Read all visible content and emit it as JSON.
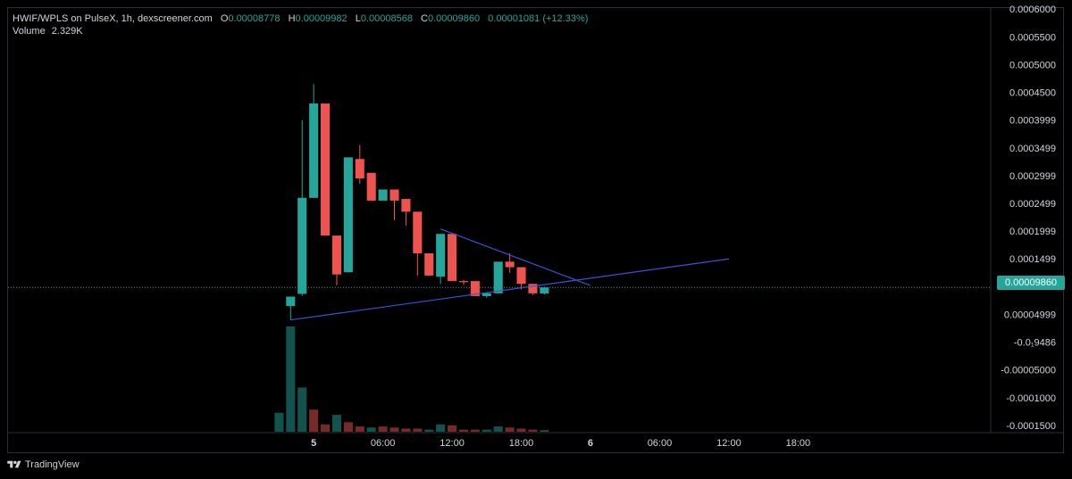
{
  "header": {
    "symbol": "HWIF/WPLS on PulseX, 1h, dexscreener.com",
    "o_label": "O",
    "o_value": "0.00008778",
    "h_label": "H",
    "h_value": "0.00009982",
    "l_label": "L",
    "l_value": "0.00008568",
    "c_label": "C",
    "c_value": "0.00009860",
    "change": "0.00001081 (+12.33%)",
    "volume_label": "Volume",
    "volume_value": "2.329K"
  },
  "footer": {
    "brand": "TradingView"
  },
  "colors": {
    "up": "#26a69a",
    "down": "#ef5350",
    "trendline": "#3f51d6",
    "grid": "#1e222d",
    "background": "#000000"
  },
  "chart_data": {
    "type": "candlestick",
    "interval": "1h",
    "y_tick_labels": [
      "0.0006000",
      "0.0005500",
      "0.0005000",
      "0.0004500",
      "0.0003999",
      "0.0003499",
      "0.0002999",
      "0.0002499",
      "0.0001999",
      "0.0001499",
      "0.00004999",
      "-0.0₁9486",
      "-0.00005000",
      "-0.0001000",
      "-0.0001500"
    ],
    "y_ticks": [
      0.0006,
      0.00055,
      0.0005,
      0.00045,
      0.0004,
      0.00035,
      0.0003,
      0.00025,
      0.0002,
      0.00015,
      5e-05,
      1e-10,
      -5e-05,
      -0.0001,
      -0.00015
    ],
    "ylim": [
      -0.000163,
      0.000602
    ],
    "x_tick_labels": [
      "5",
      "06:00",
      "12:00",
      "18:00",
      "6",
      "06:00",
      "12:00",
      "18:00"
    ],
    "x_ticks": [
      4,
      10,
      16,
      22,
      28,
      34,
      40,
      46
    ],
    "xlim": [
      -22.5,
      62.7
    ],
    "last_price": "0.00009860",
    "last_price_value": 9.86e-05,
    "candles": [
      {
        "x": 2,
        "open": 6.5e-05,
        "close": 8.2e-05,
        "high": 8.2e-05,
        "low": 4e-05
      },
      {
        "x": 3,
        "open": 8.7e-05,
        "close": 0.00026,
        "high": 0.0004,
        "low": 8.3e-05
      },
      {
        "x": 4,
        "open": 0.00026,
        "close": 0.00043,
        "high": 0.000465,
        "low": 0.00026
      },
      {
        "x": 5,
        "open": 0.00043,
        "close": 0.000192,
        "high": 0.00043,
        "low": 0.000192
      },
      {
        "x": 6,
        "open": 0.000192,
        "close": 0.000122,
        "high": 0.000192,
        "low": 0.000102
      },
      {
        "x": 7,
        "open": 0.000126,
        "close": 0.000333,
        "high": 0.000333,
        "low": 0.000126
      },
      {
        "x": 8,
        "open": 0.00033,
        "close": 0.000295,
        "high": 0.000355,
        "low": 0.000285
      },
      {
        "x": 9,
        "open": 0.000305,
        "close": 0.000255,
        "high": 0.000305,
        "low": 0.000255
      },
      {
        "x": 10,
        "open": 0.000255,
        "close": 0.000275,
        "high": 0.000275,
        "low": 0.000255
      },
      {
        "x": 11,
        "open": 0.000275,
        "close": 0.000255,
        "high": 0.000275,
        "low": 0.00022
      },
      {
        "x": 12,
        "open": 0.000258,
        "close": 0.000235,
        "high": 0.000258,
        "low": 0.00021
      },
      {
        "x": 13,
        "open": 0.000235,
        "close": 0.00016,
        "high": 0.000235,
        "low": 0.00012
      },
      {
        "x": 14,
        "open": 0.00016,
        "close": 0.00012,
        "high": 0.00016,
        "low": 0.00012
      },
      {
        "x": 15,
        "open": 0.000118,
        "close": 0.000195,
        "high": 0.000195,
        "low": 0.000105
      },
      {
        "x": 16,
        "open": 0.000195,
        "close": 0.00011,
        "high": 0.000195,
        "low": 0.00011
      },
      {
        "x": 17,
        "open": 0.00011,
        "close": 0.000108,
        "high": 0.000112,
        "low": 0.000103
      },
      {
        "x": 18,
        "open": 0.00011,
        "close": 8.3e-05,
        "high": 0.00011,
        "low": 8.3e-05
      },
      {
        "x": 19,
        "open": 8.3e-05,
        "close": 8.8e-05,
        "high": 9e-05,
        "low": 8e-05
      },
      {
        "x": 20,
        "open": 8.8e-05,
        "close": 0.000145,
        "high": 0.000145,
        "low": 8.8e-05
      },
      {
        "x": 21,
        "open": 0.000145,
        "close": 0.000135,
        "high": 0.00016,
        "low": 0.000125
      },
      {
        "x": 22,
        "open": 0.000135,
        "close": 0.000105,
        "high": 0.000135,
        "low": 9.5e-05
      },
      {
        "x": 23,
        "open": 0.000105,
        "close": 8.8e-05,
        "high": 0.000105,
        "low": 8.5e-05
      },
      {
        "x": 24,
        "open": 8.78e-05,
        "close": 9.86e-05,
        "high": 9.98e-05,
        "low": 8.57e-05
      }
    ],
    "volume": [
      {
        "x": 1,
        "value": 0.18,
        "dir": "up"
      },
      {
        "x": 2,
        "value": 1.0,
        "dir": "up"
      },
      {
        "x": 3,
        "value": 0.42,
        "dir": "up"
      },
      {
        "x": 4,
        "value": 0.21,
        "dir": "down"
      },
      {
        "x": 5,
        "value": 0.07,
        "dir": "down"
      },
      {
        "x": 6,
        "value": 0.16,
        "dir": "up"
      },
      {
        "x": 7,
        "value": 0.09,
        "dir": "down"
      },
      {
        "x": 8,
        "value": 0.05,
        "dir": "down"
      },
      {
        "x": 9,
        "value": 0.04,
        "dir": "up"
      },
      {
        "x": 10,
        "value": 0.05,
        "dir": "down"
      },
      {
        "x": 11,
        "value": 0.04,
        "dir": "down"
      },
      {
        "x": 12,
        "value": 0.03,
        "dir": "down"
      },
      {
        "x": 13,
        "value": 0.03,
        "dir": "down"
      },
      {
        "x": 14,
        "value": 0.02,
        "dir": "up"
      },
      {
        "x": 15,
        "value": 0.07,
        "dir": "up"
      },
      {
        "x": 16,
        "value": 0.06,
        "dir": "down"
      },
      {
        "x": 17,
        "value": 0.02,
        "dir": "down"
      },
      {
        "x": 18,
        "value": 0.02,
        "dir": "down"
      },
      {
        "x": 19,
        "value": 0.02,
        "dir": "up"
      },
      {
        "x": 20,
        "value": 0.05,
        "dir": "up"
      },
      {
        "x": 21,
        "value": 0.04,
        "dir": "down"
      },
      {
        "x": 22,
        "value": 0.03,
        "dir": "down"
      },
      {
        "x": 23,
        "value": 0.02,
        "dir": "down"
      },
      {
        "x": 24,
        "value": 0.015,
        "dir": "up"
      }
    ],
    "trendlines": [
      {
        "name": "support",
        "points": [
          [
            2,
            4e-05
          ],
          [
            40,
            0.00015
          ]
        ]
      },
      {
        "name": "resistance",
        "points": [
          [
            15,
            0.000204
          ],
          [
            28,
            0.000102
          ]
        ]
      }
    ]
  }
}
